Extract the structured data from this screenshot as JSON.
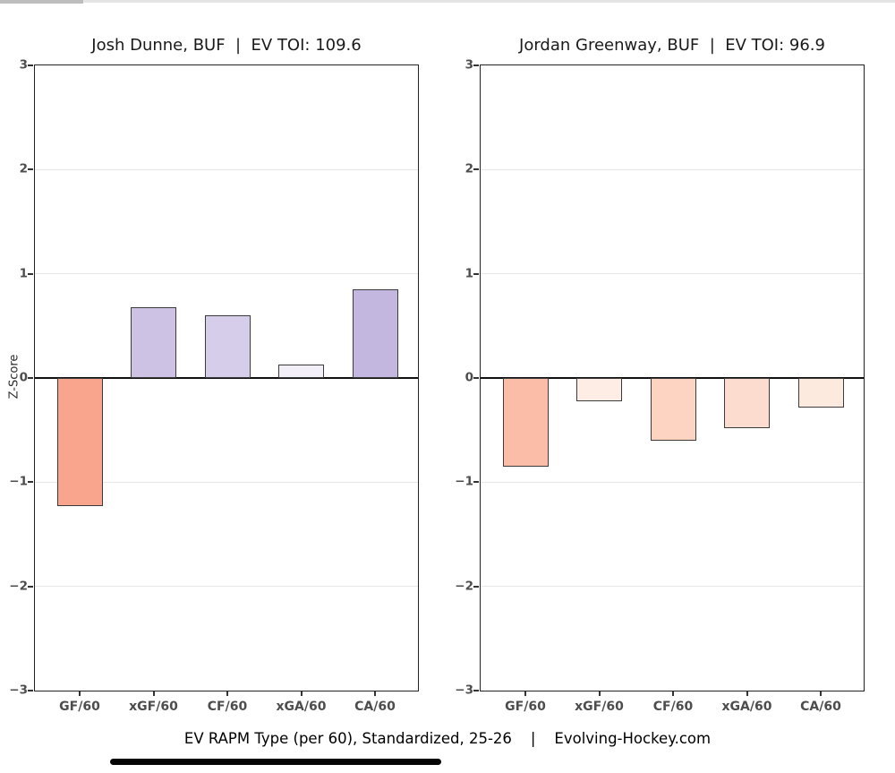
{
  "page": {
    "ylabel": "Z-Score",
    "caption": "EV RAPM Type (per 60), Standardized, 25-26    |    Evolving-Hockey.com"
  },
  "colors": {
    "background": "#ffffff",
    "bar_border": "#3b3b3b",
    "gridline": "#e6e6e6",
    "zero_line": "#111111",
    "axis_spine": "#222222",
    "tick_label": "#4d4d4d",
    "title_text": "#1a1a1a",
    "negative_strong": "#f9a48d",
    "positive_strong": "#c3b6df"
  },
  "chart_data": [
    {
      "type": "bar",
      "title": "Josh Dunne, BUF  |  EV TOI: 109.6",
      "player": "Josh Dunne",
      "team": "BUF",
      "ev_toi": "109.6",
      "categories": [
        "GF/60",
        "xGF/60",
        "CF/60",
        "xGA/60",
        "CA/60"
      ],
      "values": [
        -1.23,
        0.68,
        0.6,
        0.13,
        0.85
      ],
      "bar_colors": [
        "#f9a48d",
        "#cdc2e4",
        "#d6cdea",
        "#f3eff9",
        "#c3b6df"
      ],
      "ylabel": "Z-Score",
      "ylim": [
        -3,
        3
      ],
      "yticks": [
        3,
        2,
        1,
        0,
        -1,
        -2,
        -3
      ],
      "ytick_labels": [
        "3",
        "2",
        "1",
        "0",
        "−1",
        "−2",
        "−3"
      ],
      "grid": true,
      "legend": "none"
    },
    {
      "type": "bar",
      "title": "Jordan Greenway, BUF  |  EV TOI: 96.9",
      "player": "Jordan Greenway",
      "team": "BUF",
      "ev_toi": "96.9",
      "categories": [
        "GF/60",
        "xGF/60",
        "CF/60",
        "xGA/60",
        "CA/60"
      ],
      "values": [
        -0.85,
        -0.22,
        -0.6,
        -0.48,
        -0.28
      ],
      "bar_colors": [
        "#fcbda8",
        "#fdede5",
        "#fdd3c2",
        "#fcdccf",
        "#fdeadf"
      ],
      "ylabel": "",
      "ylim": [
        -3,
        3
      ],
      "yticks": [
        3,
        2,
        1,
        0,
        -1,
        -2,
        -3
      ],
      "ytick_labels": [
        "3",
        "2",
        "1",
        "0",
        "−1",
        "−2",
        "−3"
      ],
      "grid": true,
      "legend": "none"
    }
  ]
}
